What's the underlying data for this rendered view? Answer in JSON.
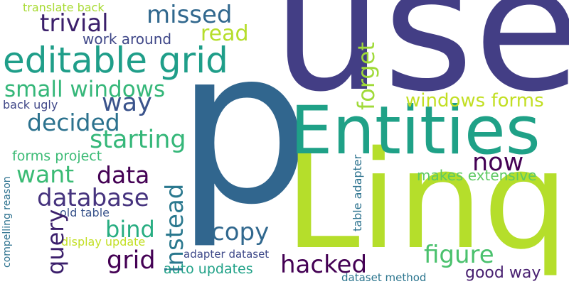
{
  "words": [
    {
      "text": "use",
      "color": "#433e85"
    },
    {
      "text": "p",
      "color": "#31668e"
    },
    {
      "text": "Linq",
      "color": "#b5de2b"
    },
    {
      "text": "Entities",
      "color": "#1fa187"
    },
    {
      "text": "editable grid",
      "color": "#1f9e89"
    },
    {
      "text": "small windows",
      "color": "#35b779"
    },
    {
      "text": "trivial",
      "color": "#3b1f6b"
    },
    {
      "text": "missed",
      "color": "#31688e"
    },
    {
      "text": "read",
      "color": "#b5de2b"
    },
    {
      "text": "translate back",
      "color": "#a8db34"
    },
    {
      "text": "work around",
      "color": "#3f4788"
    },
    {
      "text": "forget",
      "color": "#a0da39"
    },
    {
      "text": "way",
      "color": "#3a538b"
    },
    {
      "text": "back ugly",
      "color": "#3f4788"
    },
    {
      "text": "decided",
      "color": "#2c728e"
    },
    {
      "text": "starting",
      "color": "#35b779"
    },
    {
      "text": "forms project",
      "color": "#3bbb75"
    },
    {
      "text": "want",
      "color": "#3bbb75"
    },
    {
      "text": "data",
      "color": "#440154"
    },
    {
      "text": "database",
      "color": "#46337e"
    },
    {
      "text": "query",
      "color": "#3b1f6b"
    },
    {
      "text": "old table",
      "color": "#3a548c"
    },
    {
      "text": "bind",
      "color": "#27ad81"
    },
    {
      "text": "instead",
      "color": "#2a788e"
    },
    {
      "text": "compelling reason",
      "color": "#2c718e"
    },
    {
      "text": "display update",
      "color": "#c2df23"
    },
    {
      "text": "grid",
      "color": "#440154"
    },
    {
      "text": "auto updates",
      "color": "#1fa187"
    },
    {
      "text": "copy",
      "color": "#31688e"
    },
    {
      "text": "adapter dataset",
      "color": "#3e4989"
    },
    {
      "text": "hacked",
      "color": "#440154"
    },
    {
      "text": "figure",
      "color": "#4ac16d"
    },
    {
      "text": "good way",
      "color": "#481f70"
    },
    {
      "text": "dataset method",
      "color": "#2b758e"
    },
    {
      "text": "table adapter",
      "color": "#2c728e"
    },
    {
      "text": "makes extensive",
      "color": "#5ec962"
    },
    {
      "text": "now",
      "color": "#440154"
    },
    {
      "text": "windows forms",
      "color": "#c2df23"
    }
  ]
}
